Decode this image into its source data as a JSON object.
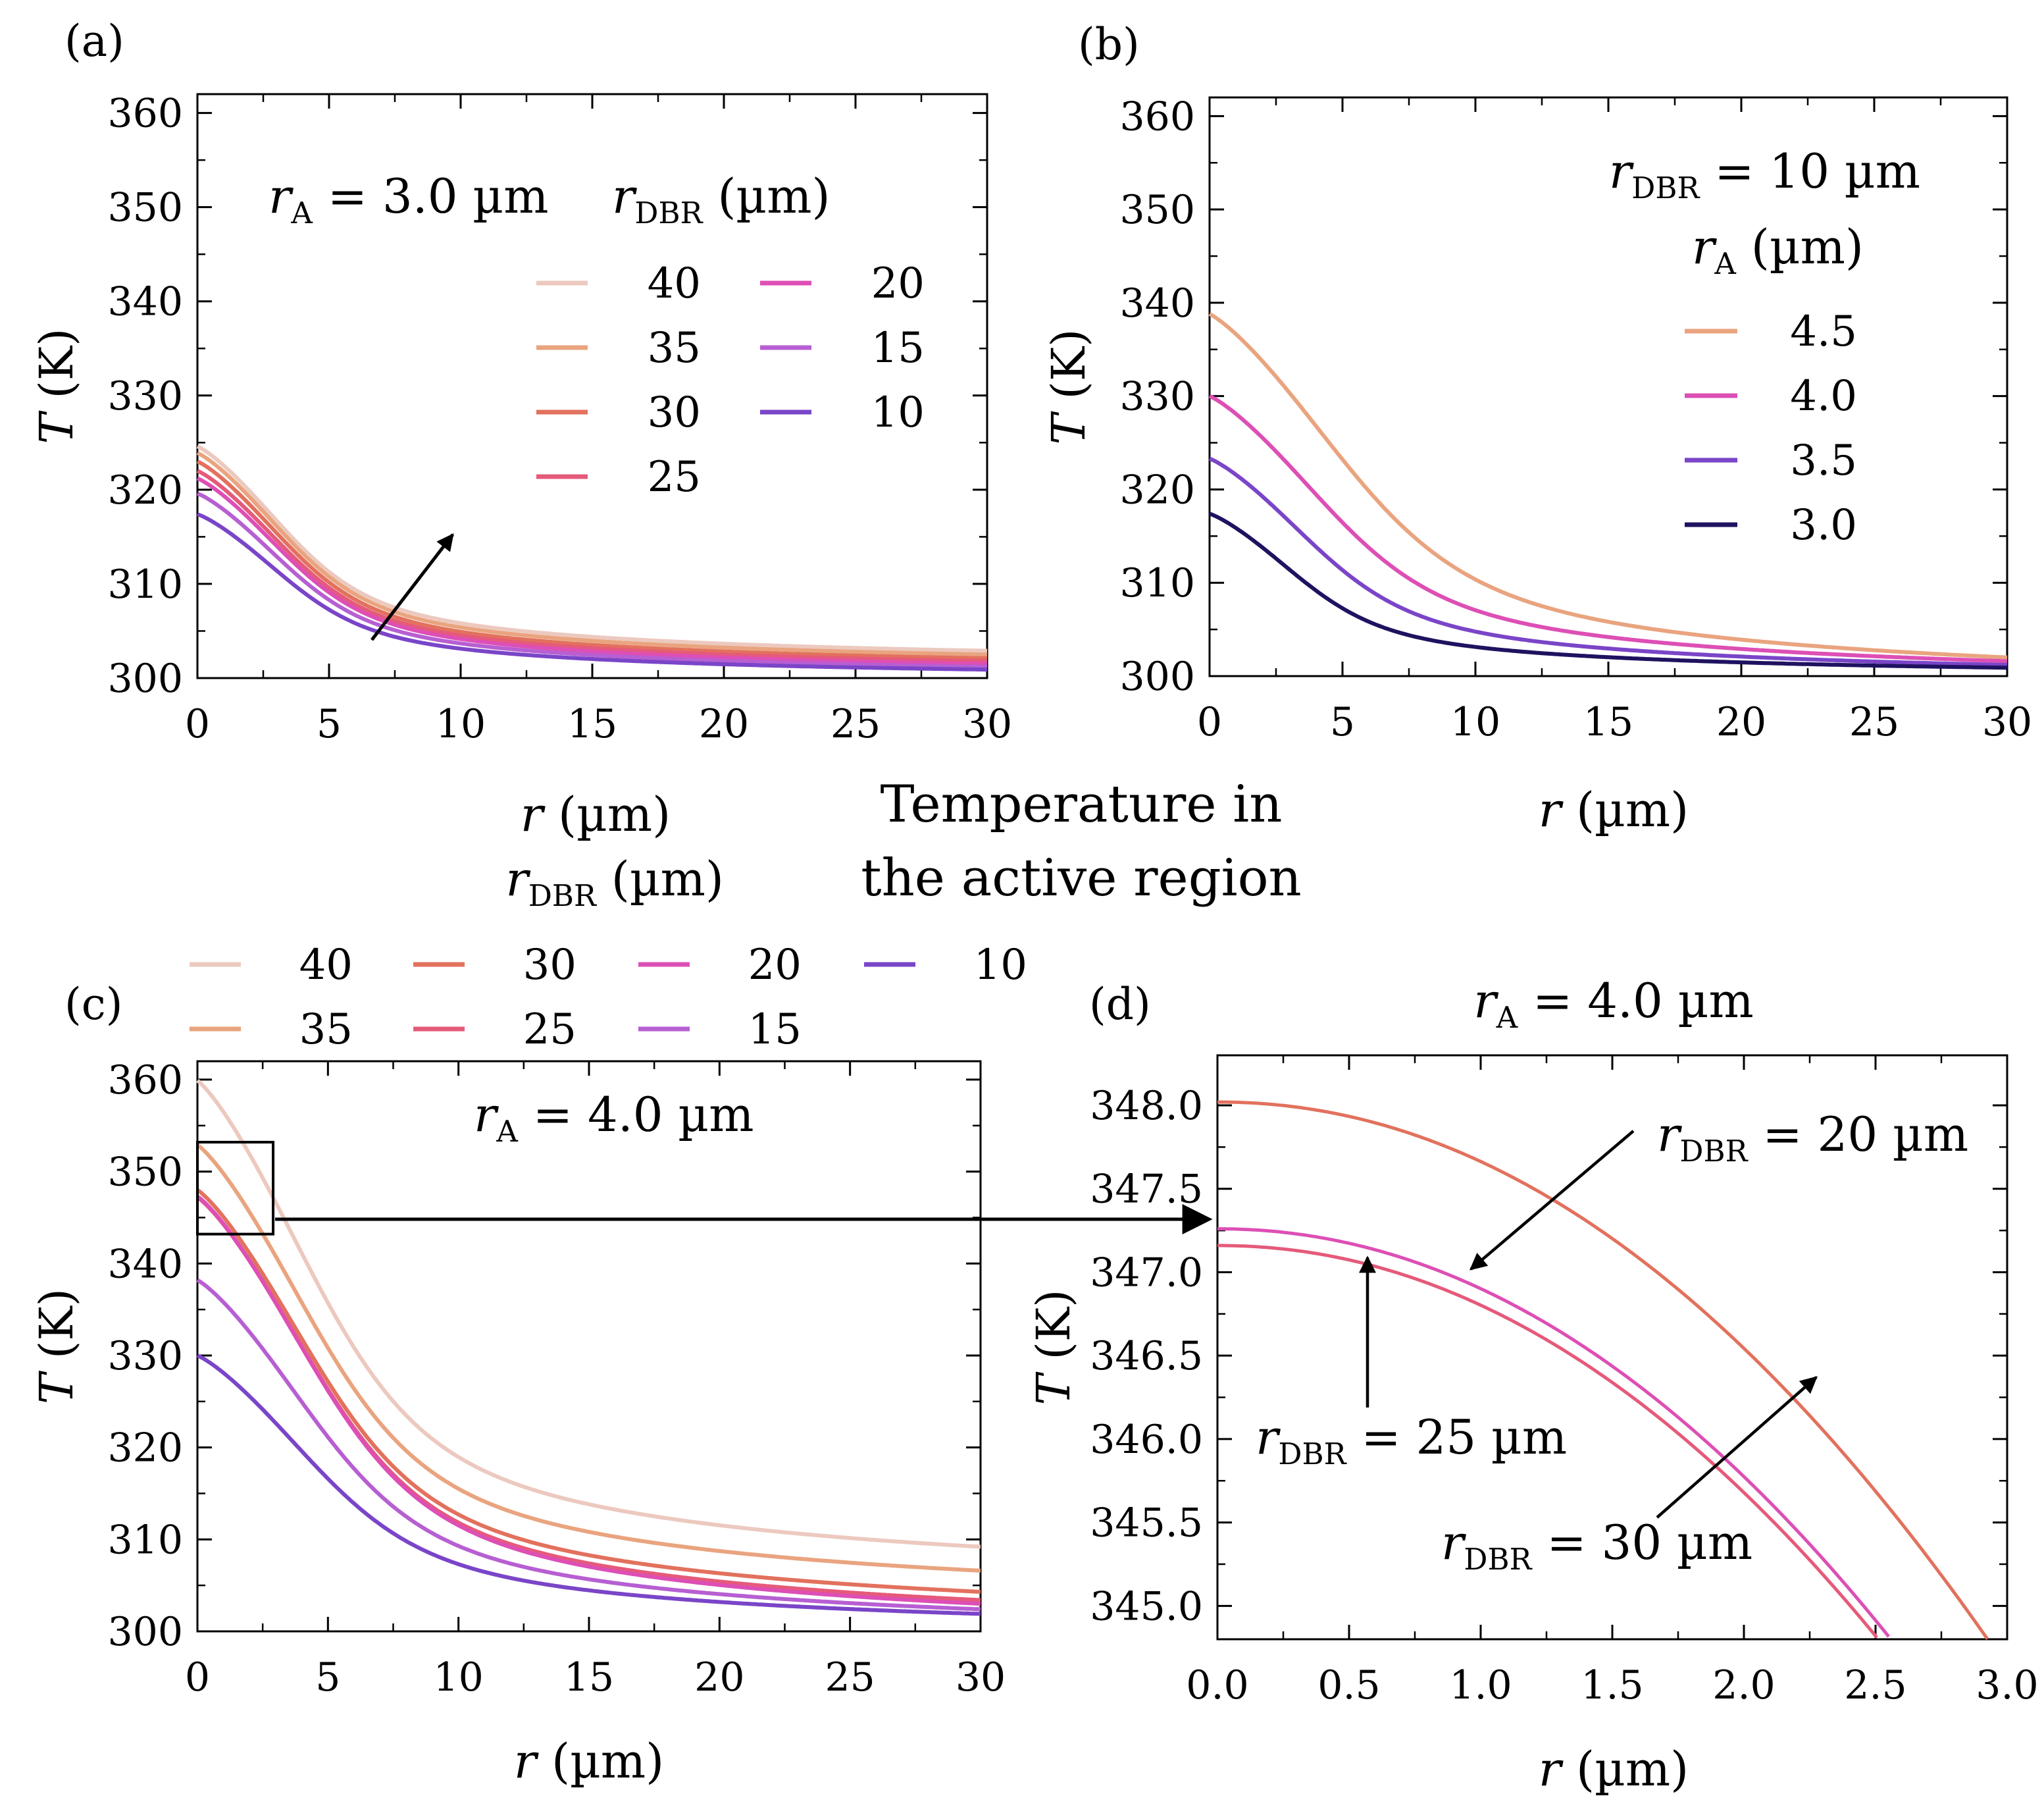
{
  "figure_title": [
    "Temperature in",
    "the active region"
  ],
  "chart_data": [
    {
      "id": "a",
      "type": "line",
      "panel_label": "(a)",
      "xlabel": {
        "var": "r",
        "unit": "(µm)"
      },
      "ylabel": {
        "var": "T",
        "unit": "(K)"
      },
      "xlim": [
        0,
        30
      ],
      "ylim": [
        300,
        362
      ],
      "xticks": [
        0,
        5,
        10,
        15,
        20,
        25,
        30
      ],
      "yticks": [
        300,
        310,
        320,
        330,
        340,
        350,
        360
      ],
      "xtick_labels": [
        "0",
        "5",
        "10",
        "15",
        "20",
        "25",
        "30"
      ],
      "ytick_labels": [
        "300",
        "310",
        "320",
        "330",
        "340",
        "350",
        "360"
      ],
      "annotation": {
        "var": "r",
        "sub": "A",
        "rest": " = 3.0 µm"
      },
      "legend_title": {
        "var": "r",
        "sub": "DBR",
        "rest": " (µm)"
      },
      "series": [
        {
          "name": "40",
          "color": "#ecc9bf",
          "peak": 324.6,
          "tail": 302.9
        },
        {
          "name": "35",
          "color": "#e9a47f",
          "peak": 323.9,
          "tail": 302.5
        },
        {
          "name": "30",
          "color": "#e2715d",
          "peak": 323.0,
          "tail": 302.1
        },
        {
          "name": "25",
          "color": "#e55a7a",
          "peak": 322.0,
          "tail": 301.8
        },
        {
          "name": "20",
          "color": "#dd4fb5",
          "peak": 321.2,
          "tail": 301.5
        },
        {
          "name": "15",
          "color": "#b75fd2",
          "peak": 319.6,
          "tail": 301.2
        },
        {
          "name": "10",
          "color": "#7a45c8",
          "peak": 317.4,
          "tail": 300.9
        }
      ]
    },
    {
      "id": "b",
      "type": "line",
      "panel_label": "(b)",
      "xlabel": {
        "var": "r",
        "unit": "(µm)"
      },
      "ylabel": {
        "var": "T",
        "unit": "(K)"
      },
      "xlim": [
        0,
        30
      ],
      "ylim": [
        300,
        362
      ],
      "xticks": [
        0,
        5,
        10,
        15,
        20,
        25,
        30
      ],
      "yticks": [
        300,
        310,
        320,
        330,
        340,
        350,
        360
      ],
      "xtick_labels": [
        "0",
        "5",
        "10",
        "15",
        "20",
        "25",
        "30"
      ],
      "ytick_labels": [
        "300",
        "310",
        "320",
        "330",
        "340",
        "350",
        "360"
      ],
      "annotation": {
        "var": "r",
        "sub": "DBR",
        "rest": " = 10 µm"
      },
      "legend_title": {
        "var": "r",
        "sub": "A",
        "rest": " (µm)"
      },
      "series": [
        {
          "name": "4.5",
          "color": "#e9a47f",
          "peak": 338.8,
          "tail": 302.0,
          "rA": 4.5
        },
        {
          "name": "4.0",
          "color": "#dd4fb5",
          "peak": 330.0,
          "tail": 301.6,
          "rA": 4.0
        },
        {
          "name": "3.5",
          "color": "#7a45c8",
          "peak": 323.3,
          "tail": 301.2,
          "rA": 3.5
        },
        {
          "name": "3.0",
          "color": "#1f1260",
          "peak": 317.4,
          "tail": 300.9,
          "rA": 3.0
        }
      ]
    },
    {
      "id": "c",
      "type": "line",
      "panel_label": "(c)",
      "xlabel": {
        "var": "r",
        "unit": "(µm)"
      },
      "ylabel": {
        "var": "T",
        "unit": "(K)"
      },
      "xlim": [
        0,
        30
      ],
      "ylim": [
        300,
        362
      ],
      "xticks": [
        0,
        5,
        10,
        15,
        20,
        25,
        30
      ],
      "yticks": [
        300,
        310,
        320,
        330,
        340,
        350,
        360
      ],
      "xtick_labels": [
        "0",
        "5",
        "10",
        "15",
        "20",
        "25",
        "30"
      ],
      "ytick_labels": [
        "300",
        "310",
        "320",
        "330",
        "340",
        "350",
        "360"
      ],
      "annotation": {
        "var": "r",
        "sub": "A",
        "rest": " = 4.0 µm"
      },
      "legend_title": {
        "var": "r",
        "sub": "DBR",
        "rest": " (µm)"
      },
      "zoom_box": {
        "x0": 0,
        "x1": 2.9,
        "y0": 343.2,
        "y1": 353.2
      },
      "series": [
        {
          "name": "40",
          "color": "#ecc9bf",
          "peak": 359.9,
          "tail": 309.2
        },
        {
          "name": "35",
          "color": "#e9a47f",
          "peak": 352.9,
          "tail": 306.6
        },
        {
          "name": "30",
          "color": "#e2715d",
          "peak": 348.0,
          "tail": 304.3
        },
        {
          "name": "25",
          "color": "#e55a7a",
          "peak": 347.2,
          "tail": 303.4
        },
        {
          "name": "20",
          "color": "#dd4fb5",
          "peak": 347.3,
          "tail": 303.0
        },
        {
          "name": "15",
          "color": "#b75fd2",
          "peak": 338.2,
          "tail": 302.4
        },
        {
          "name": "10",
          "color": "#7a45c8",
          "peak": 330.0,
          "tail": 301.9
        }
      ]
    },
    {
      "id": "d",
      "type": "line",
      "panel_label": "(d)",
      "xlabel": {
        "var": "r",
        "unit": "(µm)"
      },
      "ylabel": {
        "var": "T",
        "unit": "(K)"
      },
      "xlim": [
        0,
        3.0
      ],
      "ylim": [
        344.8,
        348.3
      ],
      "xticks": [
        0,
        0.5,
        1.0,
        1.5,
        2.0,
        2.5,
        3.0
      ],
      "yticks": [
        345.0,
        345.5,
        346.0,
        346.5,
        347.0,
        347.5,
        348.0
      ],
      "xtick_labels": [
        "0.0",
        "0.5",
        "1.0",
        "1.5",
        "2.0",
        "2.5",
        "3.0"
      ],
      "ytick_labels": [
        "345.0",
        "345.5",
        "346.0",
        "346.5",
        "347.0",
        "347.5",
        "348.0"
      ],
      "title": {
        "var": "r",
        "sub": "A",
        "rest": " = 4.0 µm"
      },
      "series": [
        {
          "name": "30",
          "color": "#e2715d",
          "peak": 348.02,
          "drop": 3.39
        },
        {
          "name": "20",
          "color": "#dd4fb5",
          "peak": 347.26,
          "drop": 3.41
        },
        {
          "name": "25",
          "color": "#e55a7a",
          "peak": 347.16,
          "drop": 3.4
        }
      ],
      "callouts": [
        {
          "var": "r",
          "sub": "DBR",
          "rest": " = 20 µm"
        },
        {
          "var": "r",
          "sub": "DBR",
          "rest": " = 25 µm"
        },
        {
          "var": "r",
          "sub": "DBR",
          "rest": " = 30 µm"
        }
      ]
    }
  ]
}
